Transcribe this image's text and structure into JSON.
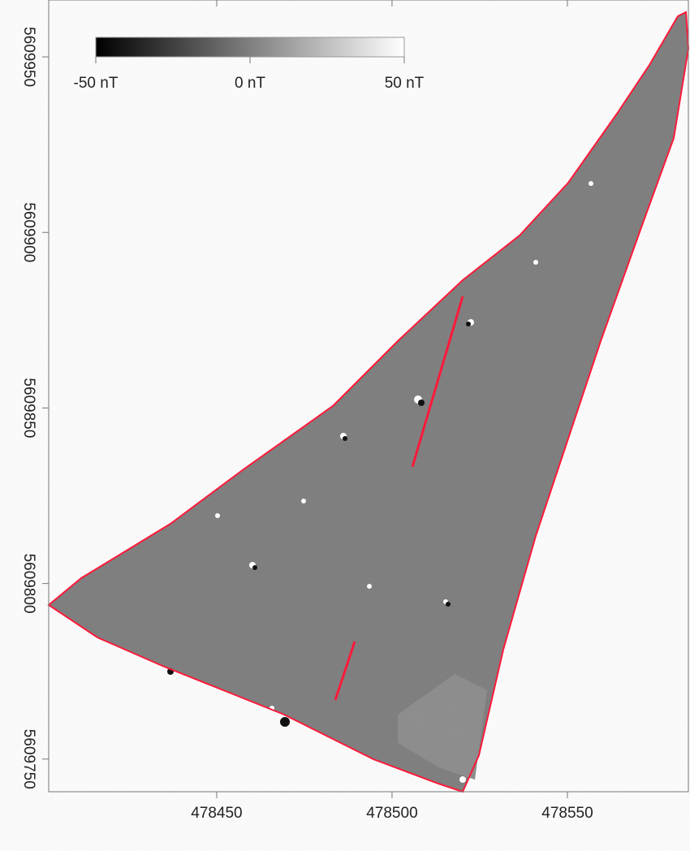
{
  "chart_data": {
    "type": "map",
    "xlim": [
      478402.1,
      478584.5
    ],
    "ylim": [
      5609740.7,
      5609966.2
    ],
    "xticks": [
      478450,
      478500,
      478550
    ],
    "yticks": [
      5609750,
      5609800,
      5609850,
      5609900,
      5609950
    ],
    "colorbar": {
      "lim": [
        -50,
        50
      ],
      "colors": [
        "#000000",
        "#ffffff"
      ],
      "ticks": [
        {
          "value": -50,
          "label": "-50 nT"
        },
        {
          "value": 0,
          "label": "0 nT"
        },
        {
          "value": 50,
          "label": "50 nT"
        }
      ]
    }
  }
}
